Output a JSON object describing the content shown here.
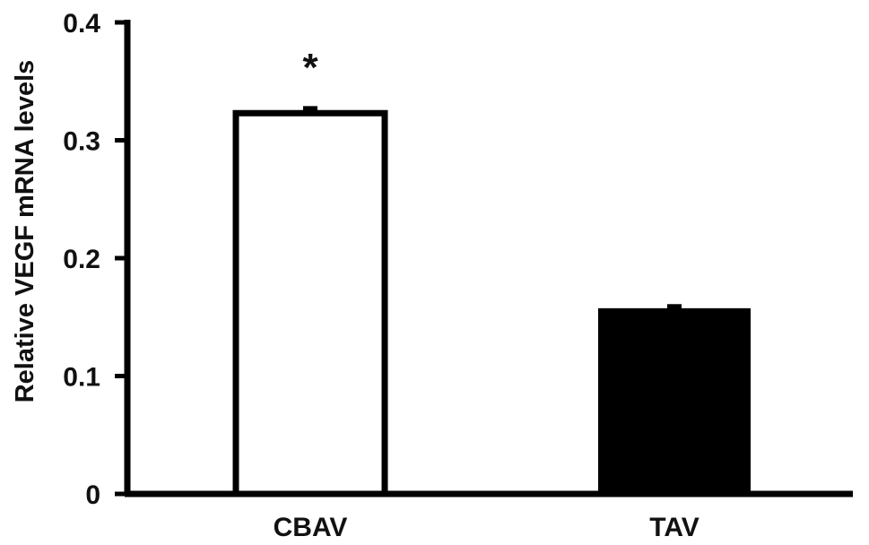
{
  "chart_data": {
    "type": "bar",
    "title": "",
    "xlabel": "",
    "ylabel": "Relative VEGF mRNA levels",
    "categories": [
      "CBAV",
      "TAV"
    ],
    "values": [
      0.323,
      0.156
    ],
    "errors": [
      0.006,
      0.005
    ],
    "bar_colors": [
      "#ffffff",
      "#000000"
    ],
    "ylim": [
      0,
      0.4
    ],
    "yticks": [
      {
        "value": 0,
        "label": "0"
      },
      {
        "value": 0.1,
        "label": "0.1"
      },
      {
        "value": 0.2,
        "label": "0.2"
      },
      {
        "value": 0.3,
        "label": "0.3"
      },
      {
        "value": 0.4,
        "label": "0.4"
      }
    ],
    "annotations": [
      {
        "category": "CBAV",
        "text": "*"
      }
    ],
    "grid": false,
    "legend": "none"
  }
}
